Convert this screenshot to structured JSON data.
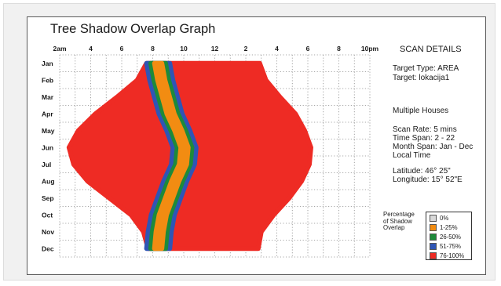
{
  "chart_data": {
    "type": "heatmap",
    "title": "Tree Shadow Overlap Graph",
    "x_ticks": [
      "2am",
      "4",
      "6",
      "8",
      "10",
      "12",
      "2",
      "4",
      "6",
      "8",
      "10pm"
    ],
    "x_tick_hours": [
      2,
      4,
      6,
      8,
      10,
      12,
      14,
      16,
      18,
      20,
      22
    ],
    "xlim": [
      2,
      22
    ],
    "y_ticks": [
      "Jan",
      "Feb",
      "Mar",
      "Apr",
      "May",
      "Jun",
      "Jul",
      "Aug",
      "Sep",
      "Oct",
      "Nov",
      "Dec"
    ],
    "grid": true,
    "levels": [
      {
        "label": "0%",
        "color": "#d9d9d9"
      },
      {
        "label": "1-25%",
        "color": "#f28c12"
      },
      {
        "label": "26-50%",
        "color": "#1d8a3a"
      },
      {
        "label": "51-75%",
        "color": "#2f55b5"
      },
      {
        "label": "76-100%",
        "color": "#ee2b24"
      }
    ],
    "shadow_window": [
      {
        "month": "Jan",
        "start": 7.6,
        "end": 14.9
      },
      {
        "month": "Feb",
        "start": 7.0,
        "end": 15.3
      },
      {
        "month": "Mar",
        "start": 5.7,
        "end": 16.2
      },
      {
        "month": "Apr",
        "start": 4.3,
        "end": 17.2
      },
      {
        "month": "May",
        "start": 3.2,
        "end": 17.8
      },
      {
        "month": "Jun",
        "start": 2.6,
        "end": 18.2
      },
      {
        "month": "Jul",
        "start": 2.9,
        "end": 18.1
      },
      {
        "month": "Aug",
        "start": 3.8,
        "end": 17.6
      },
      {
        "month": "Sep",
        "start": 5.2,
        "end": 16.8
      },
      {
        "month": "Oct",
        "start": 6.6,
        "end": 15.8
      },
      {
        "month": "Nov",
        "start": 7.4,
        "end": 15.0
      },
      {
        "month": "Dec",
        "start": 7.7,
        "end": 14.8
      }
    ],
    "partial_band": [
      {
        "month": "Jan",
        "left": 7.6,
        "right": 9.1
      },
      {
        "month": "Feb",
        "left": 7.8,
        "right": 9.3
      },
      {
        "month": "Mar",
        "left": 8.1,
        "right": 9.6
      },
      {
        "month": "Apr",
        "left": 8.4,
        "right": 9.9
      },
      {
        "month": "May",
        "left": 8.9,
        "right": 10.4
      },
      {
        "month": "Jun",
        "left": 9.3,
        "right": 10.8
      },
      {
        "month": "Jul",
        "left": 9.2,
        "right": 10.7
      },
      {
        "month": "Aug",
        "left": 8.7,
        "right": 10.2
      },
      {
        "month": "Sep",
        "left": 8.3,
        "right": 9.8
      },
      {
        "month": "Oct",
        "left": 7.9,
        "right": 9.4
      },
      {
        "month": "Nov",
        "left": 7.7,
        "right": 9.2
      },
      {
        "month": "Dec",
        "left": 7.6,
        "right": 9.1
      }
    ]
  },
  "details": {
    "heading": "SCAN DETAILS",
    "target_type": "Target Type: AREA",
    "target": "Target: lokacija1",
    "houses": "Multiple Houses",
    "scan_rate": "Scan Rate: 5 mins",
    "time_span": "Time Span: 2 - 22",
    "month_span": "Month Span: Jan - Dec",
    "local_time": "Local Time",
    "latitude": "Latitude: 46° 25\"",
    "longitude": "Longitude: 15° 52\"E"
  },
  "legend": {
    "title_lines": [
      "Percentage",
      "of Shadow",
      "Overlap"
    ]
  }
}
